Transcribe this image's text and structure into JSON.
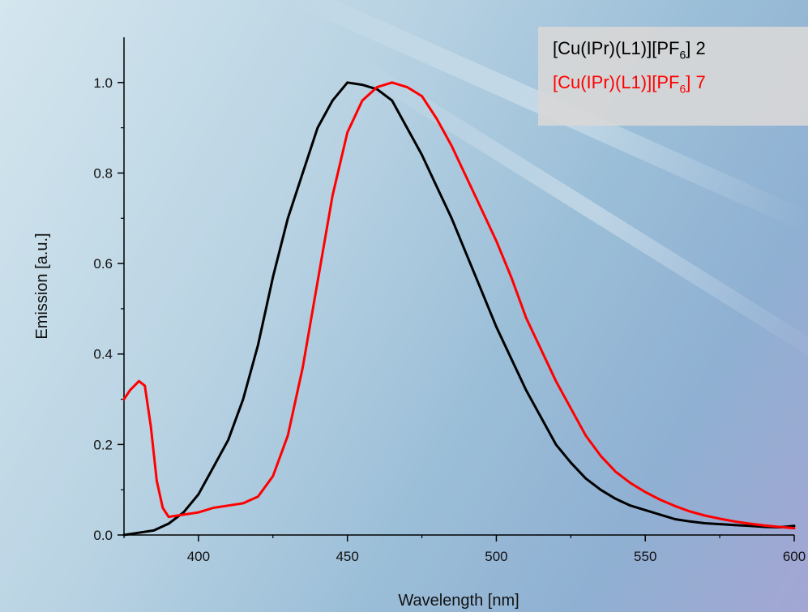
{
  "chart_data": {
    "type": "line",
    "xlabel": "Wavelength [nm]",
    "ylabel": "Emission [a.u.]",
    "xlim": [
      375,
      600
    ],
    "ylim": [
      0.0,
      1.1
    ],
    "xticks": [
      400,
      450,
      500,
      550,
      600
    ],
    "yticks": [
      0.0,
      0.2,
      0.4,
      0.6,
      0.8,
      1.0
    ],
    "xtick_labels": [
      "400",
      "450",
      "500",
      "550",
      "600"
    ],
    "ytick_labels": [
      "0.0",
      "0.2",
      "0.4",
      "0.6",
      "0.8",
      "1.0"
    ],
    "grid": false,
    "legend_position": "top-right",
    "series": [
      {
        "legend_prefix": "[Cu(IPr)(L1)][PF",
        "legend_sub": "6",
        "legend_suffix": "] 2",
        "color": "#000000",
        "x": [
          375,
          380,
          385,
          390,
          395,
          400,
          405,
          410,
          415,
          420,
          425,
          430,
          435,
          440,
          445,
          450,
          455,
          460,
          465,
          470,
          475,
          480,
          485,
          490,
          495,
          500,
          505,
          510,
          515,
          520,
          525,
          530,
          535,
          540,
          545,
          550,
          555,
          560,
          565,
          570,
          575,
          580,
          585,
          590,
          595,
          600
        ],
        "y": [
          0.0,
          0.005,
          0.01,
          0.025,
          0.05,
          0.09,
          0.15,
          0.21,
          0.3,
          0.42,
          0.57,
          0.7,
          0.8,
          0.9,
          0.96,
          1.0,
          0.995,
          0.985,
          0.96,
          0.9,
          0.84,
          0.77,
          0.7,
          0.62,
          0.54,
          0.46,
          0.39,
          0.32,
          0.26,
          0.2,
          0.16,
          0.125,
          0.1,
          0.08,
          0.065,
          0.055,
          0.045,
          0.035,
          0.03,
          0.026,
          0.024,
          0.022,
          0.02,
          0.018,
          0.017,
          0.02
        ]
      },
      {
        "legend_prefix": "[Cu(IPr)(L1)][PF",
        "legend_sub": "6",
        "legend_suffix": "] 7",
        "color": "#ff0000",
        "x": [
          375,
          377,
          380,
          382,
          384,
          386,
          388,
          390,
          395,
          400,
          405,
          410,
          415,
          420,
          425,
          430,
          435,
          440,
          445,
          450,
          455,
          460,
          465,
          470,
          475,
          480,
          485,
          490,
          495,
          500,
          505,
          510,
          515,
          520,
          525,
          530,
          535,
          540,
          545,
          550,
          555,
          560,
          565,
          570,
          575,
          580,
          585,
          590,
          595,
          600
        ],
        "y": [
          0.3,
          0.32,
          0.34,
          0.33,
          0.24,
          0.12,
          0.06,
          0.04,
          0.045,
          0.05,
          0.06,
          0.065,
          0.07,
          0.085,
          0.13,
          0.22,
          0.37,
          0.56,
          0.75,
          0.89,
          0.96,
          0.99,
          1.0,
          0.99,
          0.97,
          0.92,
          0.86,
          0.79,
          0.72,
          0.65,
          0.57,
          0.48,
          0.41,
          0.34,
          0.28,
          0.22,
          0.175,
          0.14,
          0.115,
          0.095,
          0.078,
          0.064,
          0.052,
          0.043,
          0.036,
          0.03,
          0.025,
          0.021,
          0.018,
          0.015
        ]
      }
    ]
  }
}
